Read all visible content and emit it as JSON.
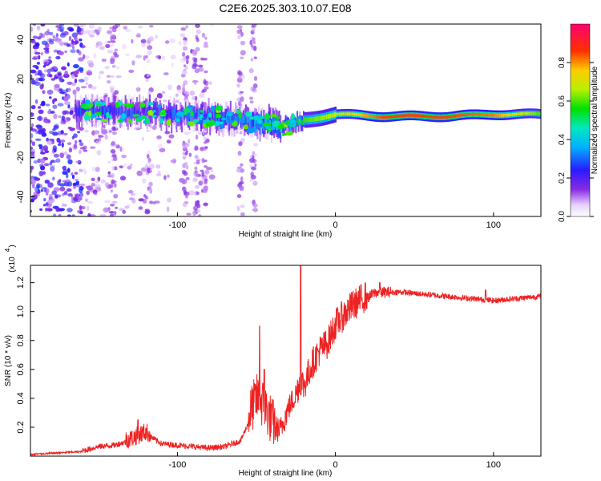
{
  "title": "C2E6.2025.303.10.07.E08",
  "chart_data": [
    {
      "type": "heatmap",
      "name": "spectrogram",
      "xlabel": "Height of straight line (km)",
      "ylabel": "Frequency (Hz)",
      "xlim": [
        -193,
        130
      ],
      "ylim": [
        -50,
        48
      ],
      "x_ticks": [
        "-100",
        "0",
        "100"
      ],
      "x_tick_values": [
        -100,
        0,
        100
      ],
      "y_ticks": [
        "40",
        "20",
        "0",
        "-20",
        "-40"
      ],
      "y_tick_values": [
        40,
        20,
        0,
        -20,
        -40
      ],
      "colorbar": {
        "label": "Normalized spectral amplitude",
        "range": [
          0,
          1
        ],
        "ticks": [
          "0.0",
          "0.2",
          "0.4",
          "0.6",
          "0.8"
        ],
        "tick_values": [
          0.0,
          0.2,
          0.4,
          0.6,
          0.8
        ]
      },
      "ridge": {
        "description_x": [
          -160,
          -120,
          -80,
          -50,
          -35,
          -20,
          0,
          30,
          70,
          100,
          130
        ],
        "center_frequency": [
          4,
          3,
          1,
          -2,
          -4,
          -1,
          2,
          1,
          1,
          2,
          2
        ],
        "amplitude": [
          0.3,
          0.3,
          0.35,
          0.4,
          0.5,
          0.7,
          0.8,
          1.0,
          1.0,
          0.95,
          0.7
        ]
      }
    },
    {
      "type": "line",
      "name": "snr",
      "xlabel": "Height of straight line (km)",
      "ylabel": "SNR (10 * v/v)",
      "y_scale_label": "(x10",
      "y_scale_exponent": "4",
      "scale_multiplier": 10000,
      "xlim": [
        -193,
        130
      ],
      "ylim": [
        0,
        1.32
      ],
      "x_ticks": [
        "-100",
        "0",
        "100"
      ],
      "x_tick_values": [
        -100,
        0,
        100
      ],
      "y_ticks": [
        "0.2",
        "0.4",
        "0.6",
        "0.8",
        "1.0",
        "1.2"
      ],
      "y_tick_values": [
        0.2,
        0.4,
        0.6,
        0.8,
        1.0,
        1.2
      ],
      "color": "#ee2222",
      "envelope": {
        "x": [
          -193,
          -160,
          -150,
          -140,
          -130,
          -120,
          -110,
          -100,
          -90,
          -80,
          -70,
          -60,
          -50,
          -45,
          -40,
          -35,
          -30,
          -25,
          -22,
          -20,
          -15,
          -10,
          -5,
          0,
          10,
          20,
          25,
          30,
          40,
          50,
          70,
          90,
          100,
          110,
          130
        ],
        "y": [
          0.01,
          0.03,
          0.06,
          0.07,
          0.1,
          0.15,
          0.08,
          0.07,
          0.06,
          0.05,
          0.06,
          0.1,
          0.35,
          0.3,
          0.18,
          0.15,
          0.3,
          0.4,
          0.5,
          0.45,
          0.6,
          0.7,
          0.75,
          0.88,
          1.0,
          1.08,
          1.12,
          1.12,
          1.13,
          1.12,
          1.1,
          1.08,
          1.07,
          1.08,
          1.1
        ]
      },
      "spikes": [
        {
          "x": -22,
          "y": 1.32
        },
        {
          "x": -48,
          "y": 0.9
        },
        {
          "x": -45,
          "y": 0.6
        },
        {
          "x": -125,
          "y": 0.25
        },
        {
          "x": 28,
          "y": 1.2
        },
        {
          "x": 95,
          "y": 1.15
        }
      ]
    }
  ]
}
